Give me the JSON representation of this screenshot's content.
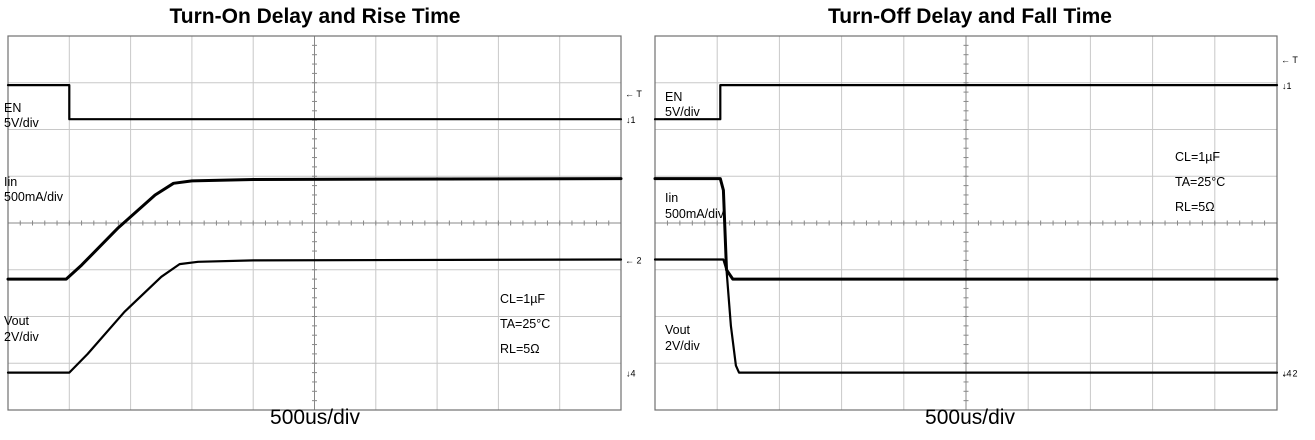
{
  "chart_data": [
    {
      "type": "line",
      "title": "Turn-On Delay and Rise Time",
      "xlabel": "500us/div",
      "grid": true,
      "divisions": {
        "x": 10,
        "y": 8
      },
      "xlim": [
        0,
        10
      ],
      "ylim": [
        0,
        8
      ],
      "series": [
        {
          "name": "EN",
          "scale": "5V/div",
          "x": [
            0,
            1.0,
            1.0,
            10
          ],
          "y": [
            6.95,
            6.95,
            6.22,
            6.22
          ],
          "marker": "T",
          "marker2": "1"
        },
        {
          "name": "Iin",
          "scale": "500mA/div",
          "x": [
            0,
            0.95,
            1.2,
            1.8,
            2.4,
            2.7,
            3.0,
            4.0,
            10
          ],
          "y": [
            2.8,
            2.8,
            3.1,
            3.9,
            4.6,
            4.85,
            4.9,
            4.93,
            4.95
          ],
          "width": 3
        },
        {
          "name": "Vout",
          "scale": "2V/div",
          "x": [
            0,
            1.0,
            1.3,
            1.9,
            2.5,
            2.8,
            3.1,
            4.0,
            10
          ],
          "y": [
            0.8,
            0.8,
            1.2,
            2.1,
            2.85,
            3.12,
            3.17,
            3.2,
            3.22
          ],
          "marker": "2",
          "marker2": "4"
        }
      ],
      "conditions": [
        "CL=1µF",
        "TA=25°C",
        "RL=5Ω"
      ]
    },
    {
      "type": "line",
      "title": "Turn-Off Delay and Fall Time",
      "xlabel": "500us/div",
      "grid": true,
      "divisions": {
        "x": 10,
        "y": 8
      },
      "xlim": [
        0,
        10
      ],
      "ylim": [
        0,
        8
      ],
      "series": [
        {
          "name": "EN",
          "scale": "5V/div",
          "x": [
            0,
            1.05,
            1.05,
            10
          ],
          "y": [
            6.22,
            6.22,
            6.95,
            6.95
          ],
          "marker": "T",
          "marker2": "1"
        },
        {
          "name": "Iin",
          "scale": "500mA/div",
          "x": [
            0,
            1.05,
            1.1,
            1.15,
            1.25,
            10
          ],
          "y": [
            4.95,
            4.95,
            4.7,
            3.0,
            2.8,
            2.8
          ],
          "width": 3
        },
        {
          "name": "Vout",
          "scale": "2V/div",
          "x": [
            0,
            1.1,
            1.15,
            1.22,
            1.3,
            1.35,
            10
          ],
          "y": [
            3.22,
            3.22,
            3.0,
            1.8,
            0.95,
            0.8,
            0.8
          ],
          "marker": "2",
          "marker2": "4"
        }
      ],
      "conditions": [
        "CL=1µF",
        "TA=25°C",
        "RL=5Ω"
      ]
    }
  ]
}
